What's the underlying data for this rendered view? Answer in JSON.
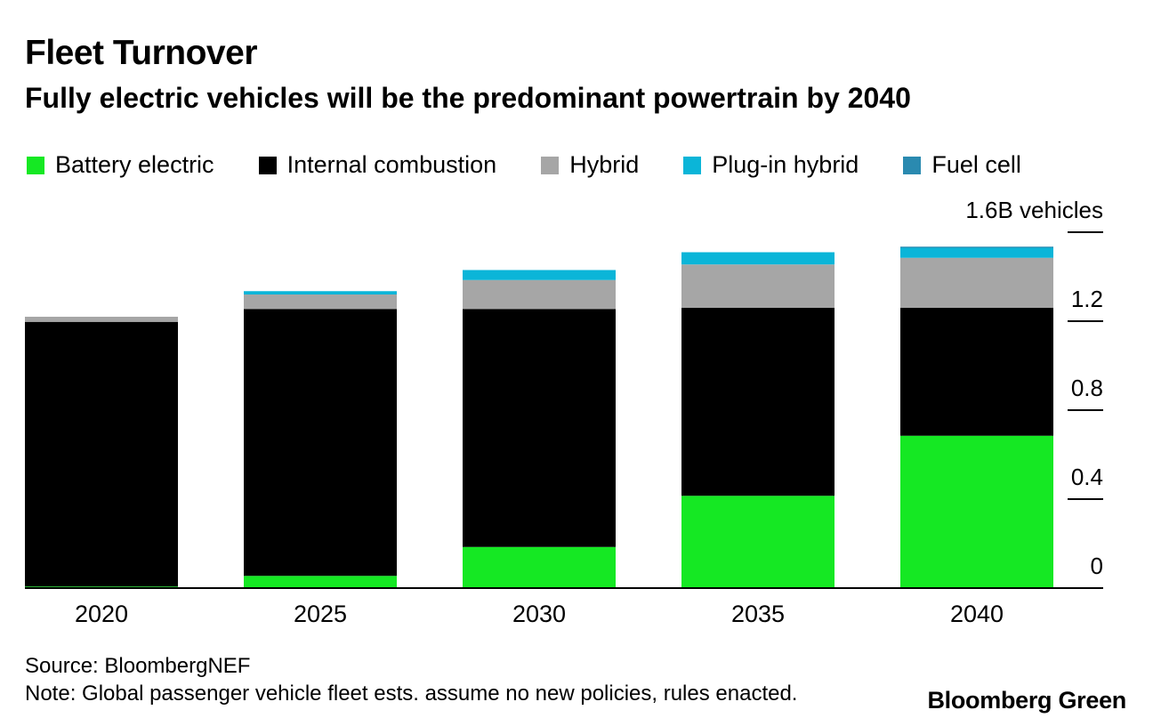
{
  "header": {
    "title": "Fleet Turnover",
    "subtitle": "Fully electric vehicles will be the predominant powertrain by 2040"
  },
  "footer": {
    "source": "Source: BloombergNEF",
    "note": "Note: Global passenger vehicle fleet ests. assume no new policies, rules enacted.",
    "brand": "Bloomberg Green"
  },
  "colors": {
    "battery_electric": "#15e823",
    "internal_combustion": "#000000",
    "hybrid": "#a6a6a6",
    "plug_in_hybrid": "#0bb5d8",
    "fuel_cell": "#2a8ab0"
  },
  "chart_data": {
    "type": "bar",
    "stacked": true,
    "categories": [
      "2020",
      "2025",
      "2030",
      "2035",
      "2040"
    ],
    "series": [
      {
        "name": "Battery electric",
        "values": [
          0.007,
          0.055,
          0.185,
          0.415,
          0.685
        ]
      },
      {
        "name": "Internal combustion",
        "values": [
          1.19,
          1.2,
          1.07,
          0.845,
          0.575
        ]
      },
      {
        "name": "Hybrid",
        "values": [
          0.023,
          0.065,
          0.13,
          0.195,
          0.225
        ]
      },
      {
        "name": "Plug-in hybrid",
        "values": [
          0.0,
          0.015,
          0.045,
          0.055,
          0.045
        ]
      },
      {
        "name": "Fuel cell",
        "values": [
          0.0,
          0.0,
          0.0,
          0.0,
          0.005
        ]
      }
    ],
    "y_ticks": [
      {
        "value": 0,
        "label": "0"
      },
      {
        "value": 0.4,
        "label": "0.4"
      },
      {
        "value": 0.8,
        "label": "0.8"
      },
      {
        "value": 1.2,
        "label": "1.2"
      },
      {
        "value": 1.6,
        "label": "1.6B vehicles"
      }
    ],
    "ylim": [
      0,
      1.6
    ],
    "axis_side": "right",
    "legend_position": "top",
    "grid": false
  }
}
